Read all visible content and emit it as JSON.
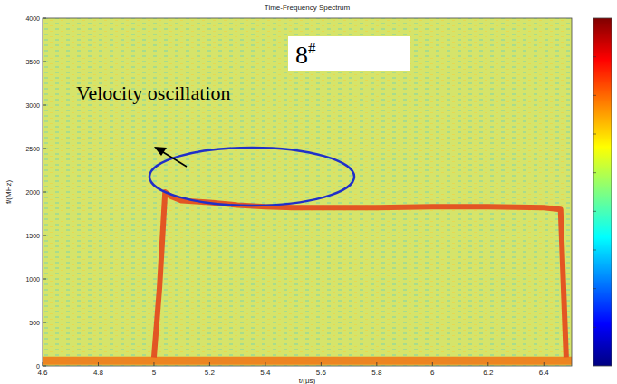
{
  "chart_data": {
    "type": "spectrogram",
    "title": "Time-Frequency Spectrum",
    "x_label": "t/(μs)",
    "y_label": "f/(MHz)",
    "xlim": [
      4.6,
      6.5
    ],
    "ylim": [
      0,
      4000
    ],
    "xticks": [
      4.6,
      4.8,
      5,
      5.2,
      5.4,
      5.6,
      5.8,
      6,
      6.2,
      6.4
    ],
    "yticks": [
      0,
      500,
      1000,
      1500,
      2000,
      2500,
      3000,
      3500,
      4000
    ],
    "grid": false,
    "series": [
      {
        "name": "Velocity oscillation",
        "color": "#e4461c",
        "x": [
          5.0,
          5.02,
          5.04,
          5.06,
          5.1,
          5.2,
          5.3,
          5.4,
          5.5,
          5.6,
          5.8,
          6.0,
          6.2,
          6.4,
          6.46,
          6.48
        ],
        "values": [
          100,
          900,
          2000,
          1950,
          1900,
          1880,
          1850,
          1830,
          1820,
          1820,
          1820,
          1830,
          1830,
          1820,
          1800,
          100
        ]
      },
      {
        "name": "8#",
        "color": "#f07a1a",
        "x": [
          4.6,
          6.5
        ],
        "values": [
          60,
          60
        ]
      }
    ],
    "annotations": [
      {
        "text": "Velocity oscillation"
      },
      {
        "text": "8#"
      }
    ]
  }
}
